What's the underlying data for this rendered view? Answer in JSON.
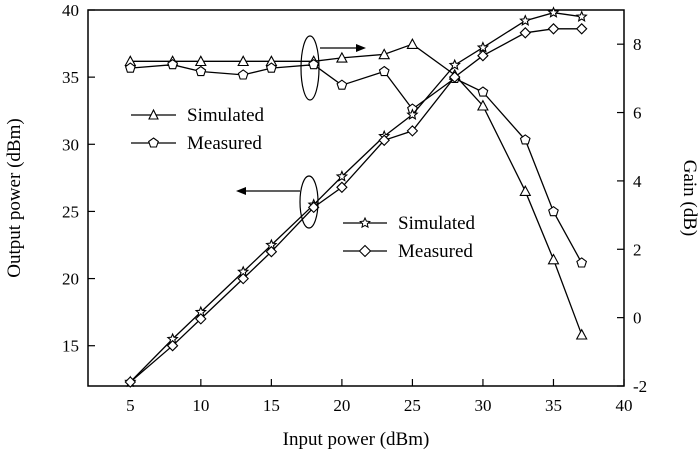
{
  "chart_data": {
    "type": "line",
    "xlabel": "Input power (dBm)",
    "ylabel_left": "Output power (dBm)",
    "ylabel_right": "Gain (dB)",
    "xlim": [
      2,
      40
    ],
    "ylim_left": [
      12,
      40
    ],
    "ylim_right": [
      -2,
      9
    ],
    "x_ticks": [
      5,
      10,
      15,
      20,
      25,
      30,
      35,
      40
    ],
    "y_left_ticks": [
      15,
      20,
      25,
      30,
      35,
      40
    ],
    "y_right_ticks": [
      -2,
      0,
      2,
      4,
      6,
      8
    ],
    "grid": false,
    "series": [
      {
        "name": "Simulated",
        "axis": "right",
        "marker": "triangle",
        "x": [
          5,
          8,
          10,
          13,
          15,
          18,
          20,
          23,
          25,
          28,
          30,
          33,
          35,
          37
        ],
        "values": [
          7.5,
          7.5,
          7.5,
          7.5,
          7.5,
          7.5,
          7.6,
          7.7,
          8.0,
          7.1,
          6.2,
          3.7,
          1.7,
          -0.5
        ]
      },
      {
        "name": "Measured",
        "axis": "right",
        "marker": "pentagon",
        "x": [
          5,
          8,
          10,
          13,
          15,
          18,
          20,
          23,
          25,
          28,
          30,
          33,
          35,
          37
        ],
        "values": [
          7.3,
          7.4,
          7.2,
          7.1,
          7.3,
          7.4,
          6.8,
          7.2,
          6.1,
          7.0,
          6.6,
          5.2,
          3.1,
          1.6
        ]
      },
      {
        "name": "Simulated",
        "axis": "left",
        "marker": "star",
        "x": [
          5,
          8,
          10,
          13,
          15,
          18,
          20,
          23,
          25,
          28,
          30,
          33,
          35,
          37
        ],
        "values": [
          12.3,
          15.5,
          17.5,
          20.5,
          22.5,
          25.5,
          27.6,
          30.6,
          32.2,
          35.9,
          37.2,
          39.2,
          39.8,
          39.5
        ]
      },
      {
        "name": "Measured",
        "axis": "left",
        "marker": "diamond",
        "x": [
          5,
          8,
          10,
          13,
          15,
          18,
          20,
          23,
          25,
          28,
          30,
          33,
          35,
          37
        ],
        "values": [
          12.3,
          15.0,
          17.0,
          20.0,
          22.0,
          25.3,
          26.8,
          30.3,
          31.0,
          35.0,
          36.6,
          38.3,
          38.6,
          38.6
        ]
      }
    ],
    "legends": [
      {
        "placement": "upper-left",
        "entries": [
          "Simulated",
          "Measured"
        ]
      },
      {
        "placement": "middle-right",
        "entries": [
          "Simulated",
          "Measured"
        ]
      }
    ]
  }
}
